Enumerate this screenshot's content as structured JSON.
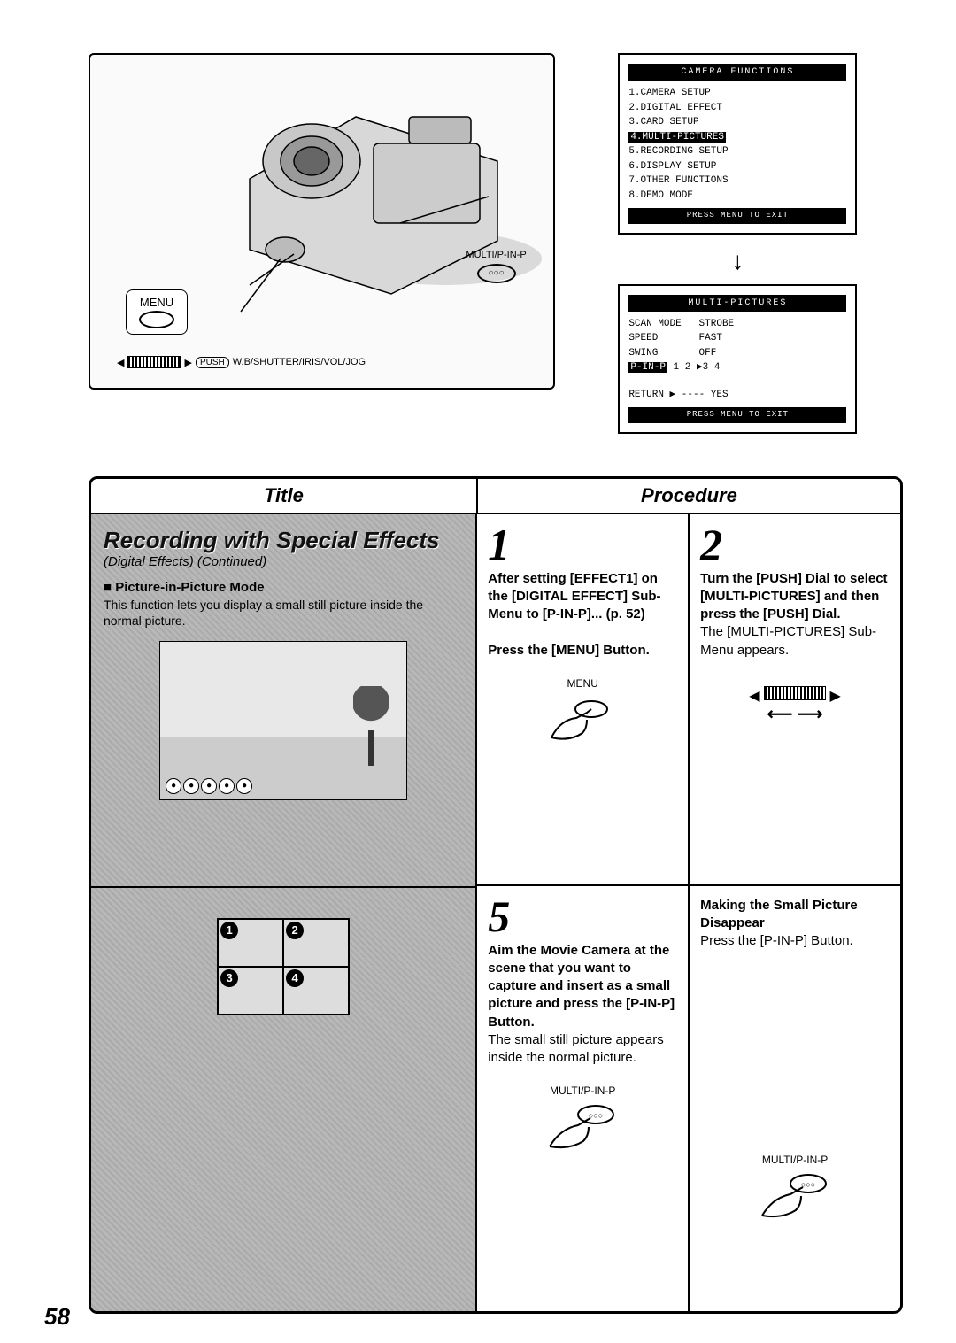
{
  "page_number": "58",
  "camera": {
    "menu_label": "MENU",
    "dial_push_label": "PUSH",
    "dial_functions": "W.B/SHUTTER/IRIS/VOL/JOG",
    "multi_button_label": "MULTI/P-IN-P",
    "multi_button_icon": "○○○"
  },
  "screen1": {
    "title": "CAMERA FUNCTIONS",
    "items": [
      "1.CAMERA SETUP",
      "2.DIGITAL EFFECT",
      "3.CARD SETUP",
      "4.MULTI-PICTURES",
      "5.RECORDING SETUP",
      "6.DISPLAY SETUP",
      "7.OTHER FUNCTIONS",
      "8.DEMO MODE"
    ],
    "highlighted_index": 3,
    "footer": "PRESS MENU TO EXIT"
  },
  "screen2": {
    "title": "MULTI-PICTURES",
    "rows": [
      {
        "label": "SCAN MODE",
        "value": "STROBE"
      },
      {
        "label": "SPEED",
        "value": "FAST"
      },
      {
        "label": "SWING",
        "value": "OFF"
      },
      {
        "label": "P-IN-P",
        "value": "1   2   ▶3   4",
        "hl_label": true
      }
    ],
    "return_line": "RETURN    ▶ ---- YES",
    "footer": "PRESS MENU TO EXIT"
  },
  "table": {
    "title_header": "Title",
    "procedure_header": "Procedure",
    "title_section": {
      "heading": "Recording with Special Effects",
      "heading_sub": "(Digital Effects) (Continued)",
      "mode_label": "■ Picture-in-Picture Mode",
      "mode_desc": "This function lets you display a small still picture inside the normal picture.",
      "pip_icons": [
        "●",
        "●",
        "●",
        "●",
        "●"
      ],
      "quad_numbers": [
        "1",
        "2",
        "3",
        "4"
      ]
    },
    "step1": {
      "num": "1",
      "text_bold": "After setting [EFFECT1] on the [DIGITAL EFFECT] Sub-Menu to [P-IN-P]... (p. 52)",
      "text2_bold": "Press the [MENU] Button.",
      "menu_label": "MENU"
    },
    "step2": {
      "num": "2",
      "text_bold": "Turn the [PUSH] Dial to select [MULTI-PICTURES] and then press the [PUSH] Dial.",
      "text_plain": "The [MULTI-PICTURES] Sub-Menu appears."
    },
    "step5": {
      "num": "5",
      "text_bold": "Aim the Movie Camera at the scene that you want to capture and insert as a small picture and press the [P-IN-P] Button.",
      "text_plain": "The small still picture appears inside the normal picture.",
      "btn_label": "MULTI/P-IN-P"
    },
    "step_disappear": {
      "heading": "Making the Small Picture Disappear",
      "text": "Press the [P-IN-P] Button.",
      "btn_label": "MULTI/P-IN-P"
    }
  }
}
